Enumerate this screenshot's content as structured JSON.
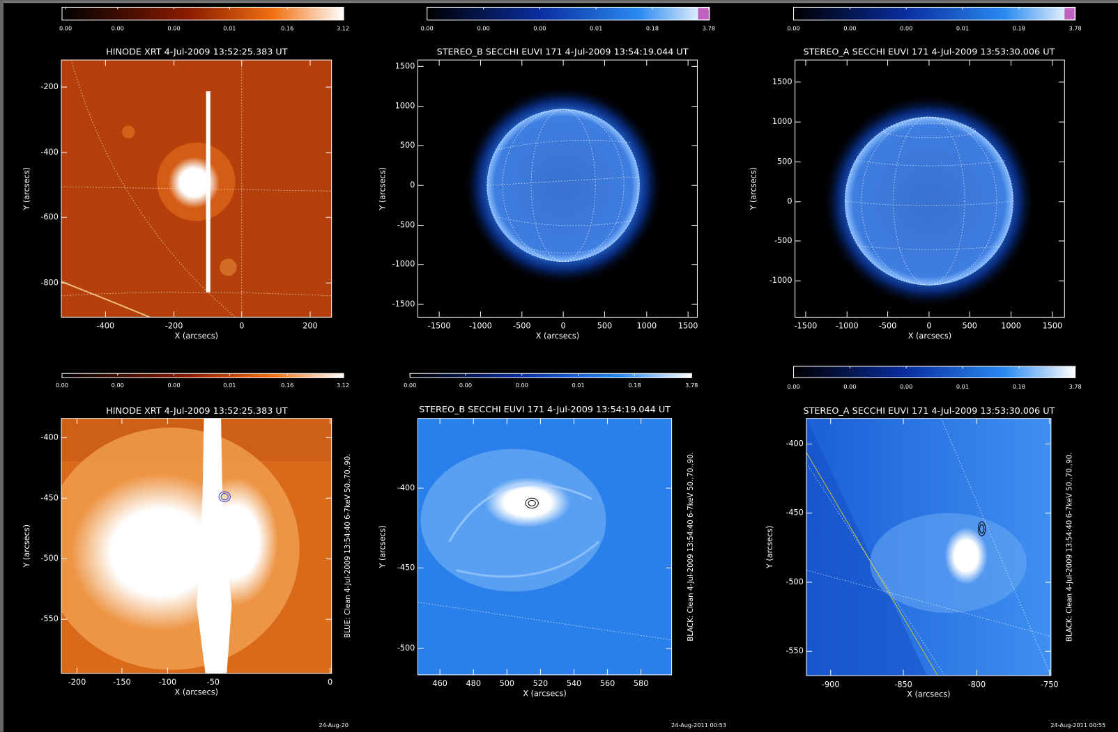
{
  "panels": [
    {
      "colorbar_labels": [
        "0.00",
        "0.00",
        "0.00",
        "0.01",
        "0.16",
        "3.12"
      ],
      "title": "HINODE XRT  4-Jul-2009 13:52:25.383 UT",
      "yticks": [
        "-200",
        "-400",
        "-600",
        "-800"
      ],
      "xticks": [
        "-400",
        "-200",
        "0",
        "200"
      ],
      "x_label": "X (arcsecs)",
      "y_label": "Y (arcsecs)"
    },
    {
      "colorbar_labels": [
        "0.00",
        "0.00",
        "0.00",
        "0.01",
        "0.18",
        "3.78"
      ],
      "title": "STEREO_B SECCHI EUVI 171   4-Jul-2009 13:54:19.044 UT",
      "yticks": [
        "1500",
        "1000",
        "500",
        "0",
        "-500",
        "-1000",
        "-1500"
      ],
      "xticks": [
        "-1500",
        "-1000",
        "-500",
        "0",
        "500",
        "1000",
        "1500"
      ],
      "x_label": "X (arcsecs)",
      "y_label": "Y (arcsecs)"
    },
    {
      "colorbar_labels": [
        "0.00",
        "0.00",
        "0.00",
        "0.01",
        "0.18",
        "3.78"
      ],
      "title": "STEREO_A SECCHI EUVI 171   4-Jul-2009 13:53:30.006 UT",
      "yticks": [
        "1500",
        "1000",
        "500",
        "0",
        "-500",
        "-1000"
      ],
      "xticks": [
        "-1500",
        "-1000",
        "-500",
        "0",
        "500",
        "1000",
        "1500"
      ],
      "x_label": "X (arcsecs)",
      "y_label": "Y (arcsecs)"
    },
    {
      "colorbar_labels": [
        "0.00",
        "0.00",
        "0.00",
        "0.01",
        "0.16",
        "3.12"
      ],
      "title": "HINODE XRT  4-Jul-2009 13:52:25.383 UT",
      "yticks": [
        "-400",
        "-450",
        "-500",
        "-550"
      ],
      "xticks": [
        "-200",
        "-150",
        "-100",
        "-50",
        "0"
      ],
      "x_label": "X (arcsecs)",
      "y_label": "Y (arcsecs)",
      "annotation": "BLUE: Clean   4-Jul-2009 13:54:40 6-7keV 50.,70.,90."
    },
    {
      "colorbar_labels": [
        "0.00",
        "0.00",
        "0.00",
        "0.01",
        "0.18",
        "3.78"
      ],
      "title": "STEREO_B SECCHI EUVI 171   4-Jul-2009 13:54:19.044 UT",
      "yticks": [
        "-400",
        "-450",
        "-500"
      ],
      "xticks": [
        "460",
        "480",
        "500",
        "520",
        "540",
        "560",
        "580"
      ],
      "x_label": "X (arcsecs)",
      "y_label": "Y (arcsecs)",
      "annotation": "BLACK: Clean   4-Jul-2009 13:54:40 6-7keV 50.,70.,90."
    },
    {
      "colorbar_labels": [
        "0.00",
        "0.00",
        "0.00",
        "0.01",
        "0.18",
        "3.78"
      ],
      "title": "STEREO_A SECCHI EUVI 171   4-Jul-2009 13:53:30.006 UT",
      "yticks": [
        "-400",
        "-450",
        "-500",
        "-550"
      ],
      "xticks": [
        "-900",
        "-850",
        "-800",
        "-750"
      ],
      "x_label": "X (arcsecs)",
      "y_label": "Y (arcsecs)",
      "annotation": "BLACK: Clean   4-Jul-2009 13:54:40 6-7keV 50.,70.,90."
    }
  ],
  "footers": [
    "24-Aug-20",
    "24-Aug-2011 00:53",
    "24-Aug-2011 00:55"
  ]
}
